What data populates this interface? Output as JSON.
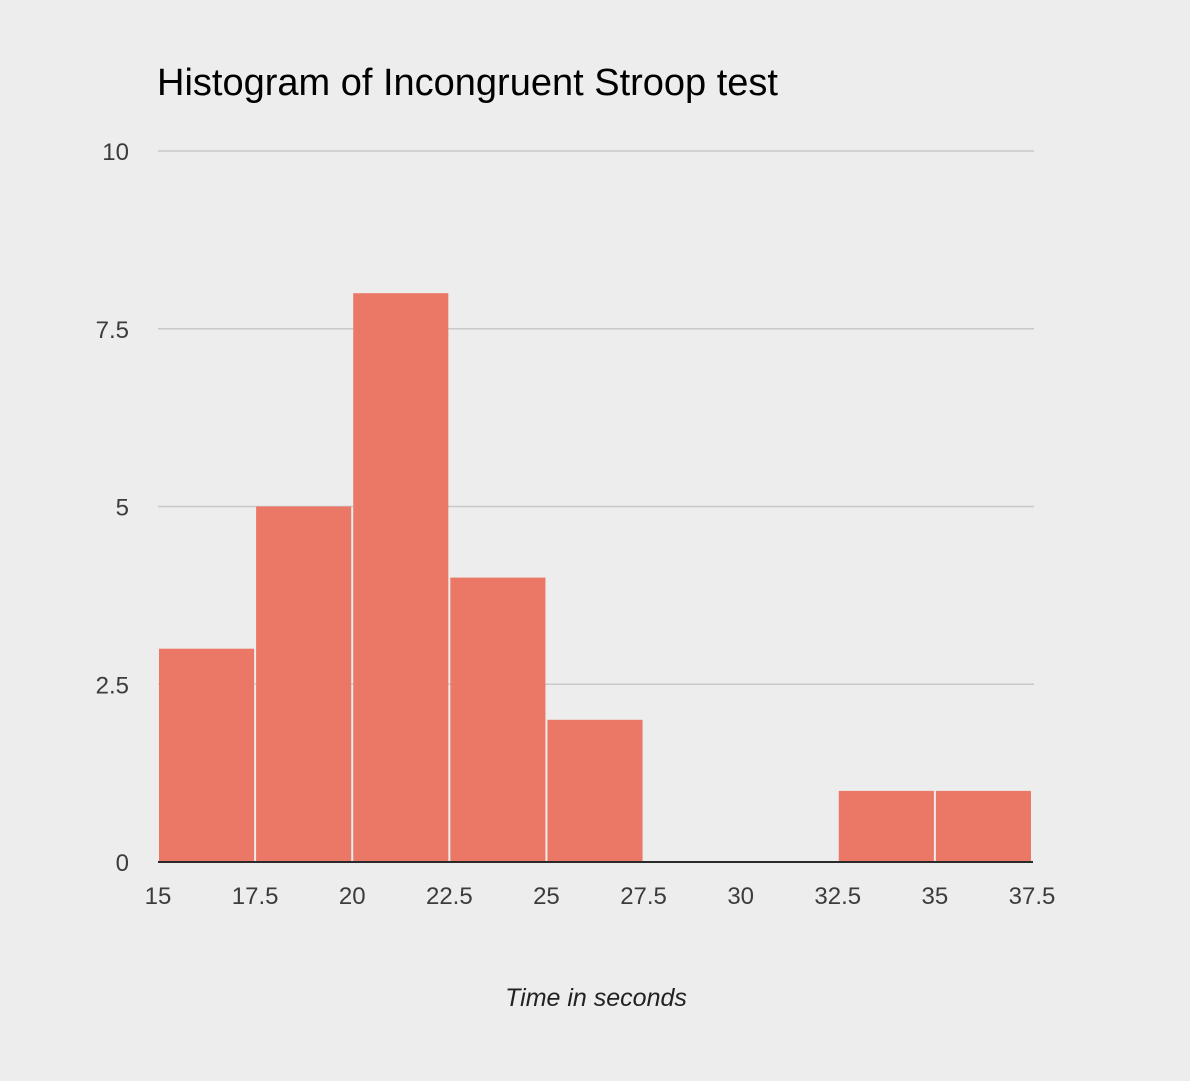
{
  "chart_data": {
    "type": "bar",
    "title": "Histogram of Incongruent Stroop test",
    "xlabel": "Time in seconds",
    "ylabel": "",
    "x_ticks": [
      "15",
      "17.5",
      "20",
      "22.5",
      "25",
      "27.5",
      "30",
      "32.5",
      "35",
      "37.5"
    ],
    "y_ticks": [
      "0",
      "2.5",
      "5",
      "7.5",
      "10"
    ],
    "xlim": [
      15,
      37.5
    ],
    "ylim": [
      0,
      10
    ],
    "bin_edges": [
      15,
      17.5,
      20,
      22.5,
      25,
      27.5,
      30,
      32.5,
      35,
      37.5
    ],
    "values": [
      3,
      5,
      8,
      4,
      2,
      0,
      0,
      1,
      1
    ],
    "grid": true,
    "legend": "none",
    "bar_color": "#eb7866",
    "grid_color": "#c8c9c8",
    "axis_color": "#2a2a2a"
  }
}
